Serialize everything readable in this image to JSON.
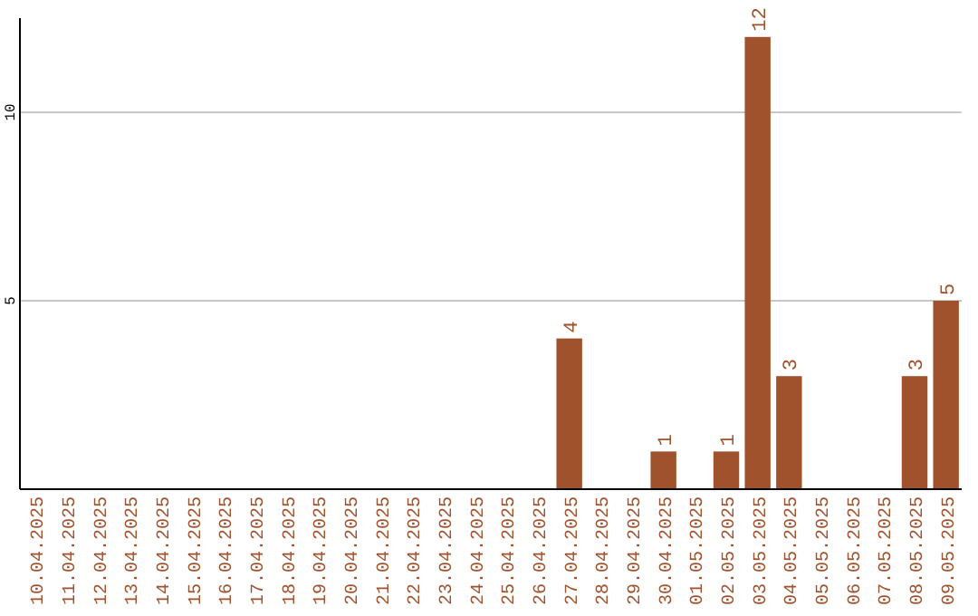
{
  "chart_data": {
    "type": "bar",
    "categories": [
      "10.04.2025",
      "11.04.2025",
      "12.04.2025",
      "13.04.2025",
      "14.04.2025",
      "15.04.2025",
      "16.04.2025",
      "17.04.2025",
      "18.04.2025",
      "19.04.2025",
      "20.04.2025",
      "21.04.2025",
      "22.04.2025",
      "23.04.2025",
      "24.04.2025",
      "25.04.2025",
      "26.04.2025",
      "27.04.2025",
      "28.04.2025",
      "29.04.2025",
      "30.04.2025",
      "01.05.2025",
      "02.05.2025",
      "03.05.2025",
      "04.05.2025",
      "05.05.2025",
      "06.05.2025",
      "07.05.2025",
      "08.05.2025",
      "09.05.2025"
    ],
    "values": [
      0,
      0,
      0,
      0,
      0,
      0,
      0,
      0,
      0,
      0,
      0,
      0,
      0,
      0,
      0,
      0,
      0,
      4,
      0,
      0,
      1,
      0,
      1,
      12,
      3,
      0,
      0,
      0,
      3,
      5
    ],
    "value_labels": [
      null,
      null,
      null,
      null,
      null,
      null,
      null,
      null,
      null,
      null,
      null,
      null,
      null,
      null,
      null,
      null,
      null,
      "4",
      null,
      null,
      "1",
      null,
      "1",
      "12",
      "3",
      null,
      null,
      null,
      "3",
      "5"
    ],
    "color": "#a0522d",
    "ylim": [
      0,
      12.5
    ],
    "yticks": [
      5,
      10
    ],
    "grid": "y"
  }
}
